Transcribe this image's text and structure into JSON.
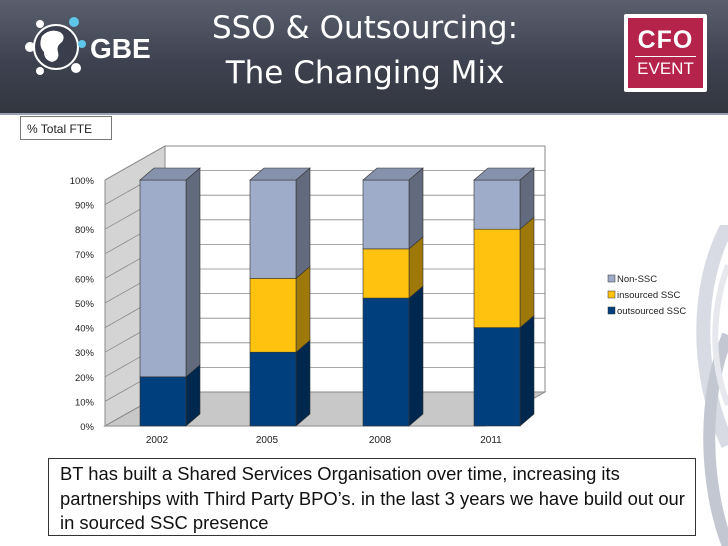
{
  "header": {
    "title_line1": "SSO & Outsourcing:",
    "title_line2": "The Changing Mix",
    "left_logo_text": "GBE",
    "right_logo_top": "CFO",
    "right_logo_bottom": "EVENT"
  },
  "fte_label": "% Total FTE",
  "caption": "BT has built a Shared Services Organisation over time, increasing its partnerships with Third Party BPO’s. in the last 3 years we have build out our in sourced SSC presence",
  "colors": {
    "non_ssc": "#9eabc9",
    "insourced_ssc": "#ffc20e",
    "outsourced_ssc": "#003f7d",
    "header": "#3e4250"
  },
  "chart_data": {
    "type": "bar",
    "stacked": true,
    "categories": [
      "2002",
      "2005",
      "2008",
      "2011"
    ],
    "series": [
      {
        "name": "outsourced SSC",
        "values": [
          20,
          30,
          52,
          40
        ]
      },
      {
        "name": "insourced SSC",
        "values": [
          0,
          30,
          20,
          40
        ]
      },
      {
        "name": "Non-SSC",
        "values": [
          80,
          40,
          28,
          20
        ]
      }
    ],
    "legend_order": [
      "Non-SSC",
      "insourced SSC",
      "outsourced SSC"
    ],
    "y_ticks": [
      "0%",
      "10%",
      "20%",
      "30%",
      "40%",
      "50%",
      "60%",
      "70%",
      "80%",
      "90%",
      "100%"
    ],
    "ylim": [
      0,
      100
    ],
    "ylabel": "% Total FTE",
    "legend_position": "right",
    "grid": true
  }
}
